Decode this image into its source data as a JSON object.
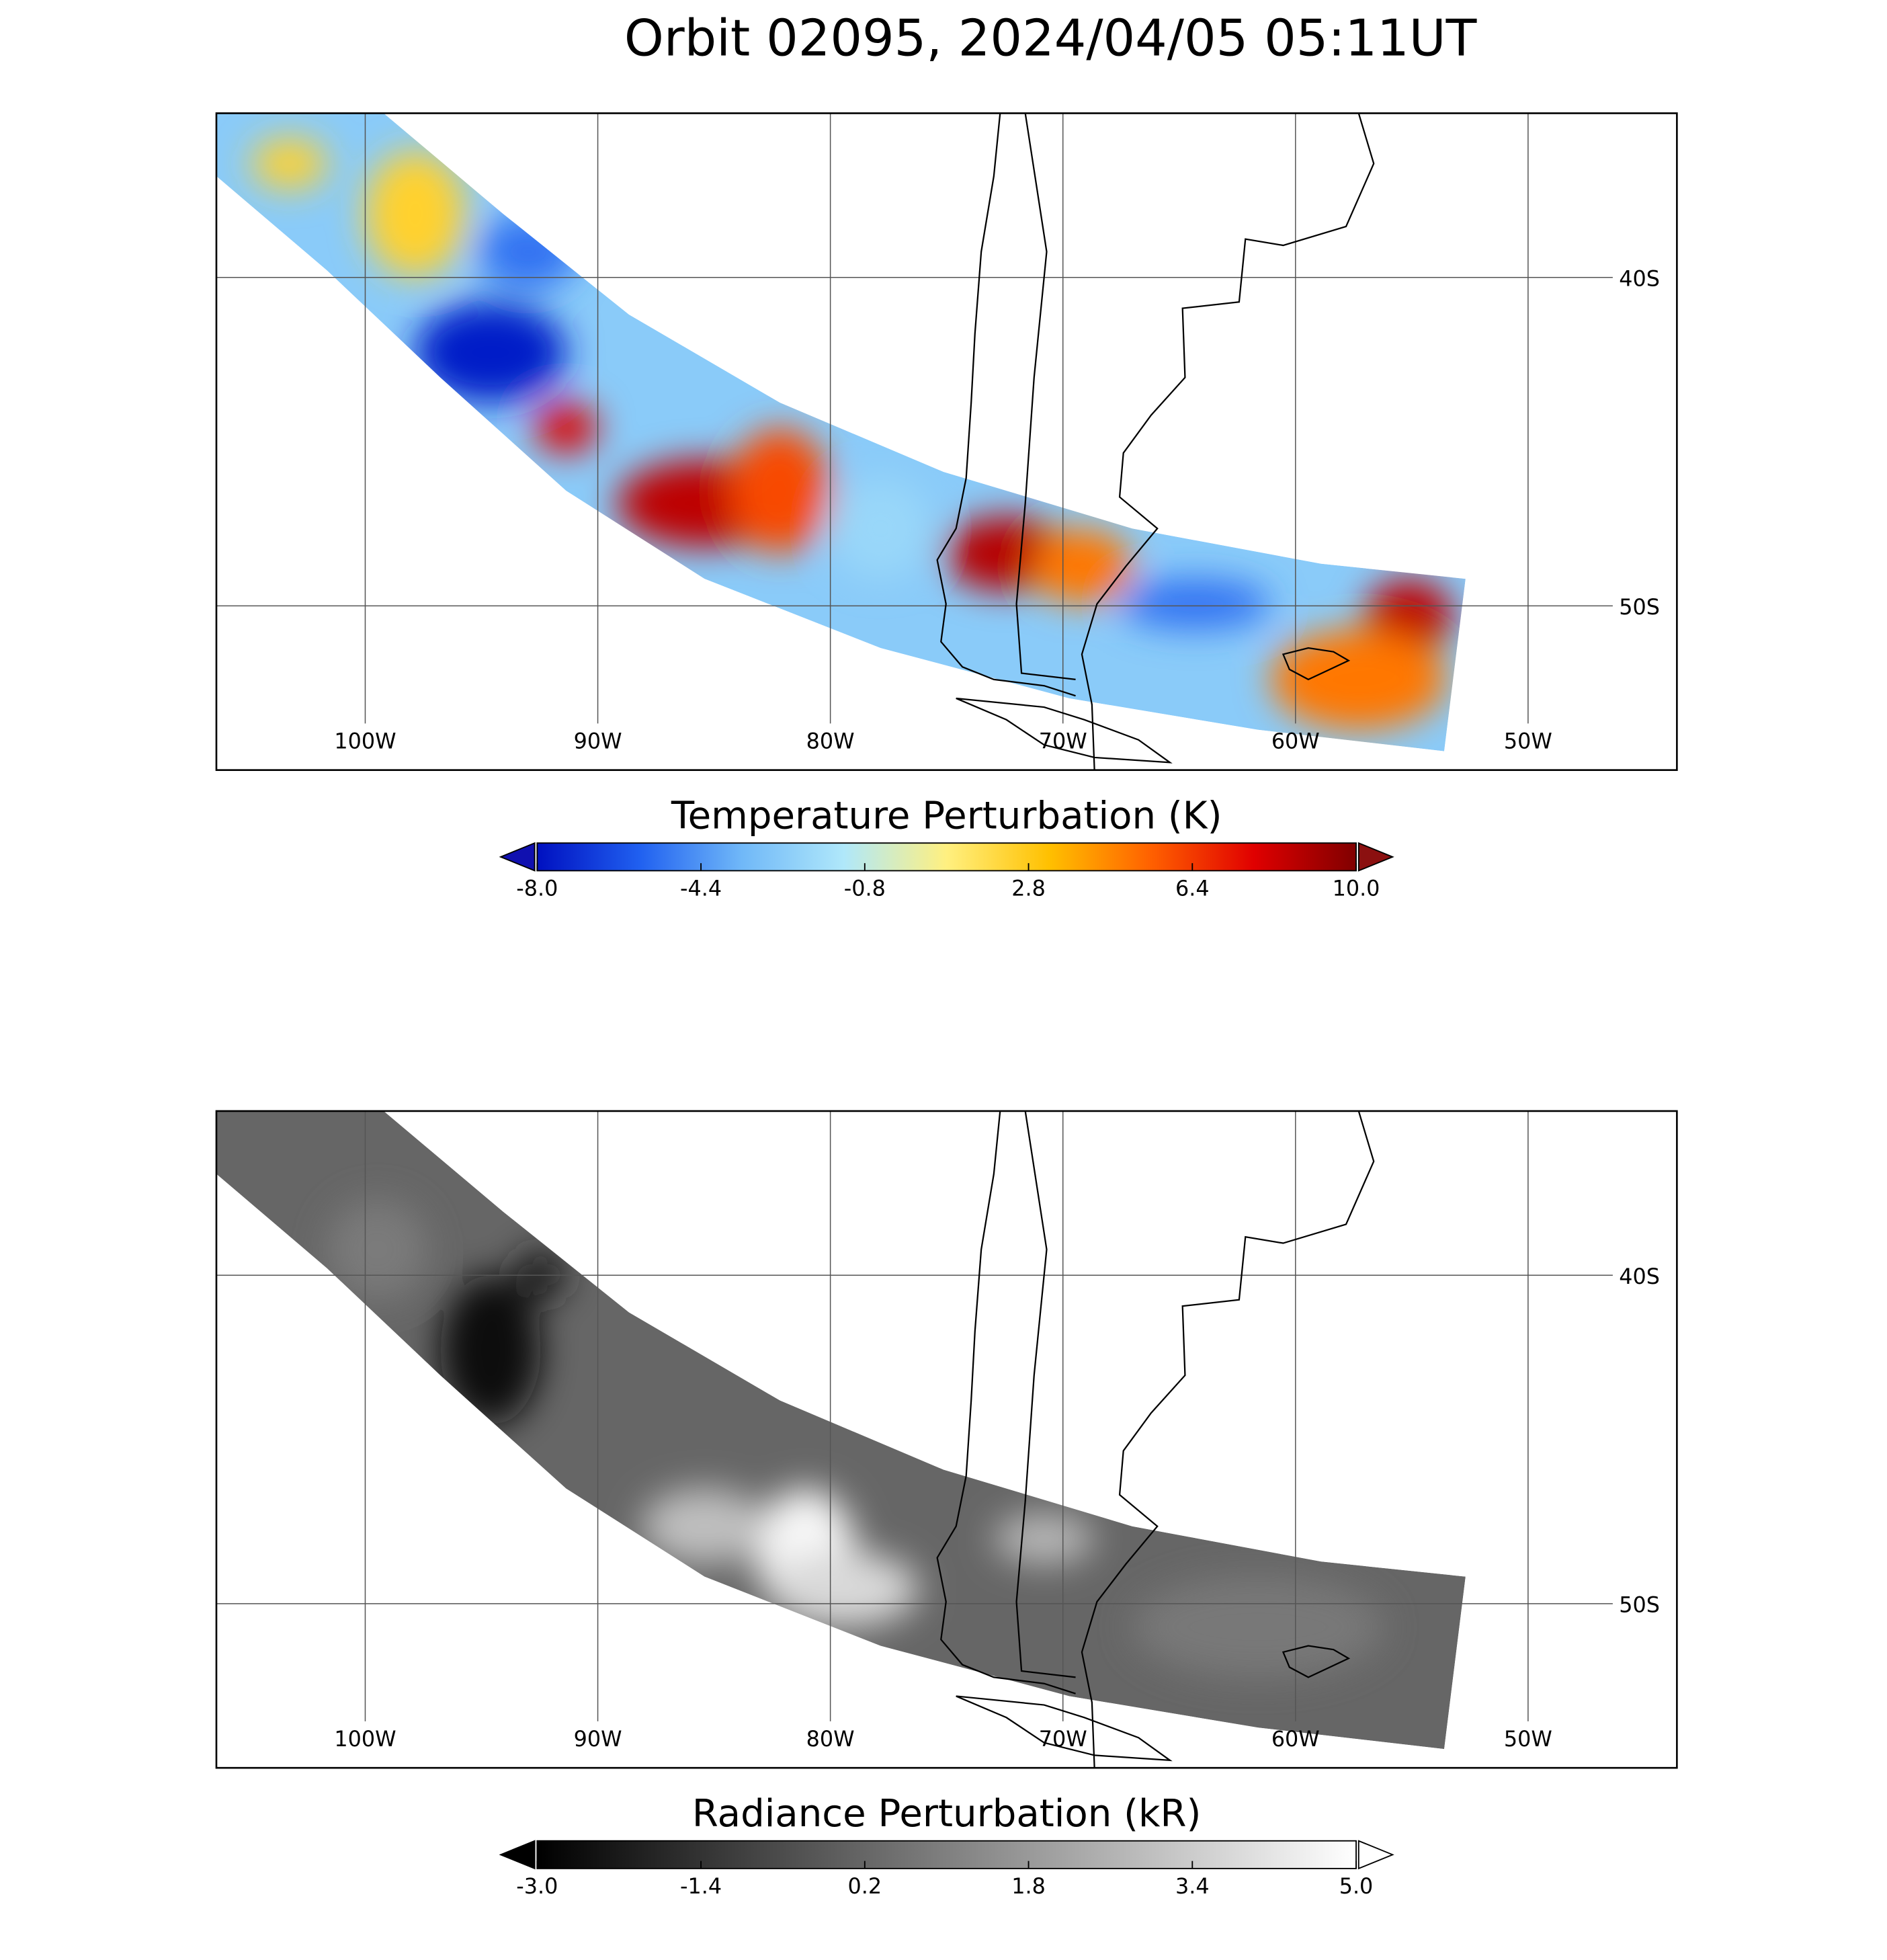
{
  "title": "Orbit 02095, 2024/04/05 05:11UT",
  "panels": [
    {
      "map": {
        "xlim": [
          -106.4,
          -43.6
        ],
        "ylim": [
          -55,
          -35
        ],
        "grid": true,
        "xticks": [
          {
            "value": -100,
            "label": "100W"
          },
          {
            "value": -90,
            "label": "90W"
          },
          {
            "value": -80,
            "label": "80W"
          },
          {
            "value": -70,
            "label": "70W"
          },
          {
            "value": -60,
            "label": "60W"
          },
          {
            "value": -50,
            "label": "50W"
          }
        ],
        "yticks": [
          {
            "value": -40,
            "label": "40S"
          },
          {
            "value": -50,
            "label": "50S"
          }
        ]
      },
      "colorbar": {
        "title": "Temperature Perturbation (K)",
        "lim": [
          -8,
          10
        ],
        "colormap": [
          "#0010c0",
          "#2060f0",
          "#70b8f8",
          "#b0e8fa",
          "#fff080",
          "#ffc000",
          "#ff6000",
          "#e00000",
          "#800000"
        ],
        "under_color": "#1010b0",
        "over_color": "#8b1010",
        "ticks": [
          {
            "value": -8,
            "label": "-8.0"
          },
          {
            "value": -4.4,
            "label": "-4.4"
          },
          {
            "value": -0.8,
            "label": "-0.8"
          },
          {
            "value": 2.8,
            "label": "2.8"
          },
          {
            "value": 6.4,
            "label": "6.4"
          },
          {
            "value": 10,
            "label": "10.0"
          }
        ]
      }
    },
    {
      "map": {
        "xlim": [
          -106.4,
          -43.6
        ],
        "ylim": [
          -55,
          -35
        ],
        "grid": true,
        "xticks": [
          {
            "value": -100,
            "label": "100W"
          },
          {
            "value": -90,
            "label": "90W"
          },
          {
            "value": -80,
            "label": "80W"
          },
          {
            "value": -70,
            "label": "70W"
          },
          {
            "value": -60,
            "label": "60W"
          },
          {
            "value": -50,
            "label": "50W"
          }
        ],
        "yticks": [
          {
            "value": -40,
            "label": "40S"
          },
          {
            "value": -50,
            "label": "50S"
          }
        ]
      },
      "colorbar": {
        "title": "Radiance Perturbation (kR)",
        "lim": [
          -3,
          5
        ],
        "colormap": [
          "#000000",
          "#ffffff"
        ],
        "under_color": "#000000",
        "over_color": "#ffffff",
        "ticks": [
          {
            "value": -3,
            "label": "-3.0"
          },
          {
            "value": -1.4,
            "label": "-1.4"
          },
          {
            "value": 0.2,
            "label": "0.2"
          },
          {
            "value": 1.8,
            "label": "1.8"
          },
          {
            "value": 3.4,
            "label": "3.4"
          },
          {
            "value": 5,
            "label": "5.0"
          }
        ]
      }
    }
  ]
}
